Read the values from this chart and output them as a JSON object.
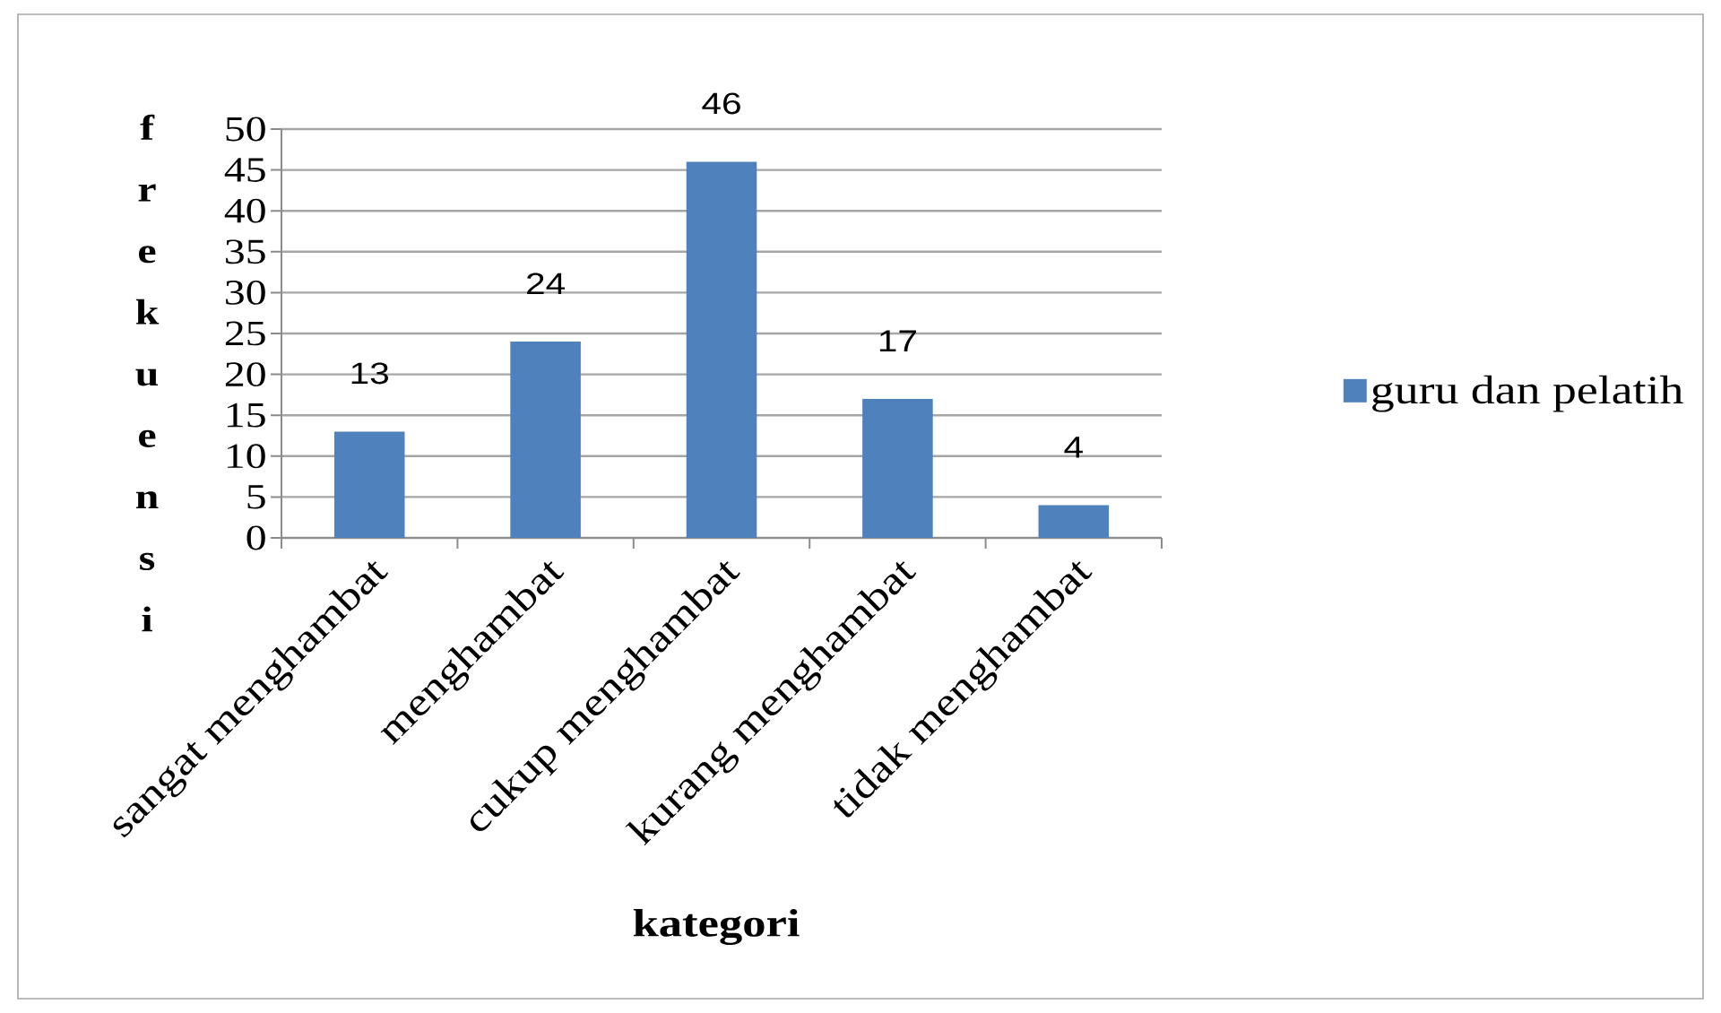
{
  "chart_data": {
    "type": "bar",
    "categories": [
      "sangat menghambat",
      "menghambat",
      "cukup menghambat",
      "kurang menghambat",
      "tidak menghambat"
    ],
    "series": [
      {
        "name": "guru dan pelatih",
        "color": "#4f81bd",
        "values": [
          13,
          24,
          46,
          17,
          4
        ]
      }
    ],
    "xlabel": "kategori",
    "ylabel": "frekuensi",
    "ylim": [
      0,
      50
    ],
    "yticks": [
      0,
      5,
      10,
      15,
      20,
      25,
      30,
      35,
      40,
      45,
      50
    ],
    "grid": "y",
    "legend": "right",
    "data_labels": true
  }
}
